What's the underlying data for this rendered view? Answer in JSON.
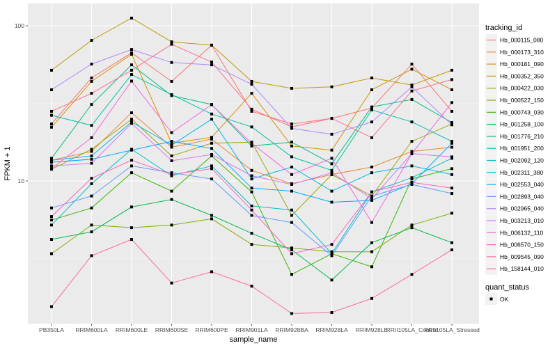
{
  "chart_data": {
    "type": "line",
    "title": "",
    "xlabel": "sample_name",
    "ylabel": "FPKM + 1",
    "yscale": "log10",
    "ylim": [
      1.25,
      130
    ],
    "yticks": [
      10,
      100
    ],
    "ytick_labels": [
      "10",
      "100"
    ],
    "grid": true,
    "legend_placement": "right",
    "categories": [
      "PB350LA",
      "RRIM600LA",
      "RRIM600LE",
      "RRIM600SE",
      "RRIM600PE",
      "RRIM901LA",
      "RRIM928BA",
      "RRIM928LA",
      "RRIM928LE",
      "RRII105LA_Control",
      "RRII105LA_Stressed"
    ],
    "legend_title": "tracking_id",
    "shape_legend_title": "quant_status",
    "shape_legend_label": "OK",
    "series": [
      {
        "name": "Hb_000115_080",
        "color": "#F8766D",
        "values": [
          23.3,
          46.1,
          66.9,
          43.8,
          75.0,
          28.1,
          23.3,
          25.3,
          29.5,
          56.6,
          28.1
        ]
      },
      {
        "name": "Hb_000173_310",
        "color": "#EA8331",
        "values": [
          13.6,
          15.5,
          27.5,
          16.5,
          18.6,
          11.7,
          9.6,
          11.0,
          12.3,
          15.5,
          16.5
        ]
      },
      {
        "name": "Hb_000181_090",
        "color": "#D89000",
        "values": [
          22.2,
          43.8,
          65.5,
          17.5,
          19.1,
          36.7,
          16.8,
          15.8,
          38.7,
          52.5,
          38.7
        ]
      },
      {
        "name": "Hb_000352_350",
        "color": "#C09B00",
        "values": [
          51.7,
          80.5,
          112,
          78.8,
          75.0,
          43.8,
          39.5,
          40.4,
          46.1,
          41.5,
          51.7
        ]
      },
      {
        "name": "Hb_000422_030",
        "color": "#A3A500",
        "values": [
          11.9,
          16.0,
          25.0,
          14.5,
          17.5,
          17.8,
          6.0,
          11.0,
          8.0,
          18.0,
          23.3
        ]
      },
      {
        "name": "Hb_000522_150",
        "color": "#7CAE00",
        "values": [
          3.4,
          5.2,
          5.0,
          5.2,
          5.7,
          3.9,
          3.7,
          3.5,
          3.5,
          5.2,
          6.2
        ]
      },
      {
        "name": "Hb_000743_030",
        "color": "#39B600",
        "values": [
          5.6,
          6.7,
          11.3,
          8.6,
          14.5,
          8.5,
          2.5,
          3.4,
          2.8,
          10.3,
          12.0
        ]
      },
      {
        "name": "Hb_001258_100",
        "color": "#00BB4E",
        "values": [
          4.2,
          4.7,
          6.8,
          7.6,
          6.0,
          4.6,
          3.6,
          2.3,
          4.0,
          5.0,
          4.0
        ]
      },
      {
        "name": "Hb_001776_210",
        "color": "#00BF7D",
        "values": [
          14.0,
          31.1,
          56.0,
          35.5,
          31.1,
          16.8,
          17.8,
          12.9,
          30.0,
          33.5,
          23.8
        ]
      },
      {
        "name": "Hb_001951_200",
        "color": "#00C1A3",
        "values": [
          26.5,
          22.8,
          48.5,
          36.0,
          27.0,
          22.3,
          14.3,
          11.7,
          28.7,
          24.0,
          18.0
        ]
      },
      {
        "name": "Hb_002092_120",
        "color": "#00BFC4",
        "values": [
          5.2,
          9.6,
          16.0,
          10.8,
          12.5,
          6.9,
          6.5,
          3.4,
          8.5,
          10.5,
          14.0
        ]
      },
      {
        "name": "Hb_002311_380",
        "color": "#00B8E7",
        "values": [
          13.6,
          14.5,
          24.0,
          17.0,
          25.0,
          10.3,
          12.3,
          8.6,
          11.3,
          12.5,
          11.0
        ]
      },
      {
        "name": "Hb_002553_040",
        "color": "#00A9FF",
        "values": [
          13.2,
          13.8,
          15.8,
          18.0,
          16.2,
          9.0,
          8.6,
          7.3,
          7.5,
          9.6,
          17.5
        ]
      },
      {
        "name": "Hb_002893_040",
        "color": "#619CFF",
        "values": [
          6.7,
          8.0,
          12.5,
          11.3,
          10.3,
          6.0,
          5.4,
          3.3,
          8.0,
          9.5,
          8.3
        ]
      },
      {
        "name": "Hb_002965_040",
        "color": "#AE87FF",
        "values": [
          38.7,
          56.6,
          70.3,
          58.0,
          56.0,
          42.0,
          21.8,
          20.0,
          24.0,
          40.4,
          23.0
        ]
      },
      {
        "name": "Hb_003213_010",
        "color": "#DB72FB",
        "values": [
          12.5,
          13.0,
          23.5,
          13.5,
          14.8,
          10.8,
          9.5,
          11.3,
          7.7,
          15.0,
          14.3
        ]
      },
      {
        "name": "Hb_006132_110",
        "color": "#F564E3",
        "values": [
          12.0,
          19.0,
          44.0,
          20.5,
          31.0,
          17.5,
          11.0,
          14.0,
          5.4,
          15.0,
          32.0
        ]
      },
      {
        "name": "Hb_006570_150",
        "color": "#FF61C3",
        "values": [
          5.9,
          10.4,
          13.6,
          11.0,
          12.0,
          6.5,
          3.4,
          3.9,
          8.5,
          9.8,
          9.0
        ]
      },
      {
        "name": "Hb_009545_090",
        "color": "#FF6C91",
        "values": [
          28.1,
          36.7,
          51.7,
          76.0,
          58.4,
          29.0,
          22.3,
          25.3,
          19.0,
          38.0,
          45.0
        ]
      },
      {
        "name": "Hb_158144_010",
        "color": "#FF6A98",
        "values": [
          1.55,
          3.3,
          4.2,
          2.2,
          2.6,
          2.1,
          1.4,
          1.42,
          1.75,
          2.5,
          3.6
        ]
      }
    ]
  }
}
